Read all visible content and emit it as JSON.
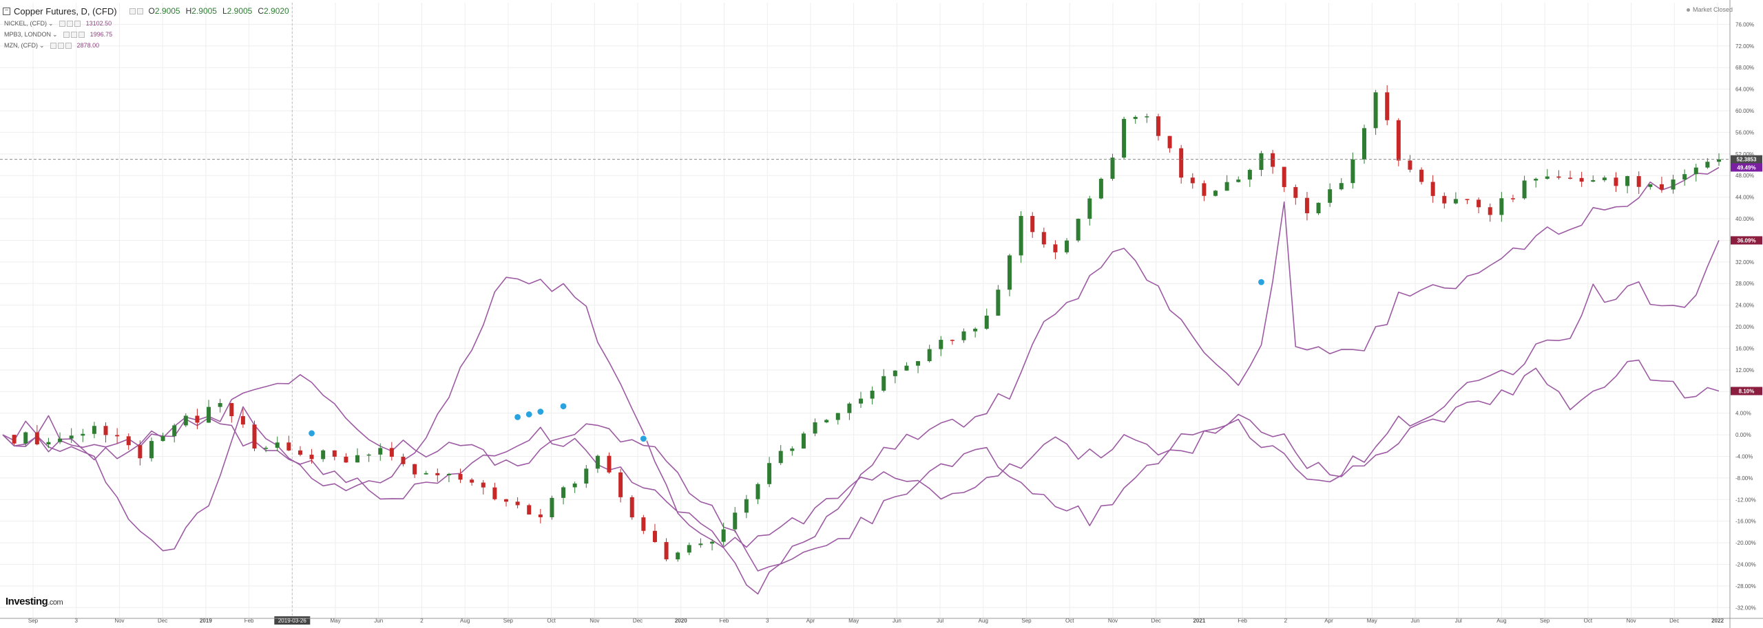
{
  "header": {
    "title": "Copper Futures, D, (CFD)",
    "ohlc": [
      {
        "label": "O",
        "value": "2.9005"
      },
      {
        "label": "H",
        "value": "2.9005"
      },
      {
        "label": "L",
        "value": "2.9005"
      },
      {
        "label": "C",
        "value": "2.9020"
      }
    ],
    "subseries": [
      {
        "name": "NICKEL, (CFD)",
        "value": "13102.50",
        "icon": "chevron-down-icon"
      },
      {
        "name": "MPB3, LONDON",
        "value": "1996.75",
        "icon": "chevron-down-icon"
      },
      {
        "name": "MZN, (CFD)",
        "value": "2878.00",
        "icon": "chevron-down-icon"
      }
    ],
    "market_status": "Market Closed"
  },
  "brand": {
    "name": "Investing",
    "suffix": ".com"
  },
  "colors": {
    "up": "#2e7d32",
    "down": "#c62828",
    "compare": "#9c5aa3",
    "grid": "#eeeeee",
    "axis_text": "#555555"
  },
  "chart_data": {
    "type": "line",
    "title": "Copper Futures, D, (CFD)",
    "xlabel": "",
    "ylabel": "",
    "ylim": [
      -34,
      80
    ],
    "y_unit": "%",
    "y_ticks": [
      "76.00%",
      "72.00%",
      "68.00%",
      "64.00%",
      "60.00%",
      "56.00%",
      "52.00%",
      "48.00%",
      "44.00%",
      "40.00%",
      "36.00%",
      "32.00%",
      "28.00%",
      "24.00%",
      "20.00%",
      "16.00%",
      "12.00%",
      "8.00%",
      "4.00%",
      "0.00%",
      "-4.00%",
      "-8.00%",
      "-12.00%",
      "-16.00%",
      "-20.00%",
      "-24.00%",
      "-28.00%",
      "-32.00%"
    ],
    "x_ticks": [
      "Sep",
      "3",
      "Nov",
      "Dec",
      "2019",
      "Feb",
      "2019-03-26",
      "May",
      "Jun",
      "2",
      "Aug",
      "Sep",
      "Oct",
      "Nov",
      "Dec",
      "2020",
      "Feb",
      "3",
      "Apr",
      "May",
      "Jun",
      "Jul",
      "Aug",
      "Sep",
      "Oct",
      "Nov",
      "Dec",
      "2021",
      "Feb",
      "2",
      "Apr",
      "May",
      "Jun",
      "Jul",
      "Aug",
      "Sep",
      "Oct",
      "Nov",
      "Dec",
      "2022"
    ],
    "x_bold": [
      "2019",
      "2020",
      "2021",
      "2022"
    ],
    "crosshair_label": "2019-03-26",
    "price_badge": "52.3853",
    "series": [
      {
        "name": "Copper Futures, D, (CFD)",
        "style": "candles",
        "anchors": [
          [
            0,
            0
          ],
          [
            5,
            -2
          ],
          [
            8,
            1
          ],
          [
            12,
            -4
          ],
          [
            15,
            1
          ],
          [
            19,
            6
          ],
          [
            22,
            -2
          ],
          [
            26,
            -3
          ],
          [
            30,
            -5
          ],
          [
            33,
            -2
          ],
          [
            36,
            -7
          ],
          [
            40,
            -9
          ],
          [
            44,
            -13
          ],
          [
            47,
            -15
          ],
          [
            52,
            -4
          ],
          [
            58,
            -24
          ],
          [
            62,
            -19
          ],
          [
            68,
            -4
          ],
          [
            74,
            6
          ],
          [
            78,
            12
          ],
          [
            83,
            18
          ],
          [
            86,
            22
          ],
          [
            89,
            40
          ],
          [
            92,
            34
          ],
          [
            96,
            47
          ],
          [
            98,
            58
          ],
          [
            100,
            60
          ],
          [
            103,
            48
          ],
          [
            106,
            44
          ],
          [
            110,
            52
          ],
          [
            114,
            41
          ],
          [
            117,
            46
          ],
          [
            119,
            56
          ],
          [
            120,
            64
          ],
          [
            122,
            50
          ],
          [
            126,
            44
          ],
          [
            130,
            42
          ],
          [
            134,
            48
          ],
          [
            138,
            46
          ],
          [
            142,
            47
          ],
          [
            146,
            46
          ],
          [
            148,
            50
          ],
          [
            150,
            51
          ]
        ],
        "end_label": "52.3853"
      },
      {
        "name": "NICKEL, (CFD)",
        "style": "line",
        "anchors": [
          [
            0,
            0
          ],
          [
            4,
            -2
          ],
          [
            8,
            -5
          ],
          [
            12,
            -18
          ],
          [
            15,
            -21
          ],
          [
            18,
            -12
          ],
          [
            21,
            5
          ],
          [
            25,
            -4
          ],
          [
            29,
            -10
          ],
          [
            33,
            -9
          ],
          [
            37,
            -2
          ],
          [
            40,
            12
          ],
          [
            44,
            30
          ],
          [
            47,
            28
          ],
          [
            50,
            27
          ],
          [
            54,
            10
          ],
          [
            57,
            -5
          ],
          [
            60,
            -18
          ],
          [
            63,
            -22
          ],
          [
            66,
            -29
          ],
          [
            70,
            -20
          ],
          [
            73,
            -15
          ],
          [
            76,
            -5
          ],
          [
            80,
            0
          ],
          [
            85,
            3
          ],
          [
            88,
            8
          ],
          [
            91,
            20
          ],
          [
            94,
            26
          ],
          [
            97,
            35
          ],
          [
            100,
            30
          ],
          [
            103,
            20
          ],
          [
            106,
            13
          ],
          [
            108,
            10
          ],
          [
            110,
            16
          ],
          [
            112,
            44
          ],
          [
            113,
            17
          ],
          [
            116,
            15
          ],
          [
            119,
            16
          ],
          [
            122,
            25
          ],
          [
            126,
            27
          ],
          [
            130,
            30
          ],
          [
            134,
            36
          ],
          [
            138,
            40
          ],
          [
            140,
            41
          ],
          [
            143,
            45
          ],
          [
            146,
            47
          ],
          [
            149,
            49
          ],
          [
            150,
            49.5
          ]
        ],
        "end_label": "49.49%"
      },
      {
        "name": "MPB3, LONDON",
        "style": "line",
        "anchors": [
          [
            0,
            0
          ],
          [
            4,
            2
          ],
          [
            8,
            -4
          ],
          [
            11,
            -3
          ],
          [
            15,
            2
          ],
          [
            19,
            3
          ],
          [
            22,
            9
          ],
          [
            25,
            11
          ],
          [
            28,
            7
          ],
          [
            32,
            0
          ],
          [
            36,
            -3
          ],
          [
            40,
            -1
          ],
          [
            44,
            -6
          ],
          [
            47,
            -3
          ],
          [
            51,
            3
          ],
          [
            54,
            -1
          ],
          [
            57,
            -3
          ],
          [
            60,
            -10
          ],
          [
            63,
            -16
          ],
          [
            66,
            -24
          ],
          [
            70,
            -22
          ],
          [
            74,
            -18
          ],
          [
            78,
            -12
          ],
          [
            82,
            -5
          ],
          [
            86,
            -3
          ],
          [
            89,
            -8
          ],
          [
            92,
            -12
          ],
          [
            95,
            -16
          ],
          [
            98,
            -10
          ],
          [
            101,
            -5
          ],
          [
            104,
            -2
          ],
          [
            107,
            3
          ],
          [
            110,
            -2
          ],
          [
            113,
            -6
          ],
          [
            116,
            -8
          ],
          [
            119,
            -4
          ],
          [
            122,
            2
          ],
          [
            125,
            4
          ],
          [
            128,
            9
          ],
          [
            131,
            11
          ],
          [
            134,
            16
          ],
          [
            137,
            19
          ],
          [
            139,
            27
          ],
          [
            141,
            24
          ],
          [
            143,
            28
          ],
          [
            145,
            23
          ],
          [
            148,
            25
          ],
          [
            150,
            36
          ]
        ],
        "end_label": "36.09%"
      },
      {
        "name": "MZN, (CFD)",
        "style": "line",
        "anchors": [
          [
            0,
            0
          ],
          [
            4,
            -2
          ],
          [
            8,
            -3
          ],
          [
            12,
            -1
          ],
          [
            15,
            1
          ],
          [
            18,
            3
          ],
          [
            22,
            -2
          ],
          [
            26,
            -5
          ],
          [
            30,
            -8
          ],
          [
            33,
            -12
          ],
          [
            37,
            -9
          ],
          [
            40,
            -6
          ],
          [
            43,
            -3
          ],
          [
            47,
            0
          ],
          [
            50,
            -2
          ],
          [
            53,
            -6
          ],
          [
            56,
            -9
          ],
          [
            59,
            -13
          ],
          [
            62,
            -19
          ],
          [
            65,
            -20
          ],
          [
            68,
            -18
          ],
          [
            71,
            -14
          ],
          [
            74,
            -10
          ],
          [
            77,
            -8
          ],
          [
            80,
            -9
          ],
          [
            83,
            -12
          ],
          [
            86,
            -8
          ],
          [
            89,
            -5
          ],
          [
            92,
            -2
          ],
          [
            95,
            -4
          ],
          [
            98,
            -1
          ],
          [
            101,
            -3
          ],
          [
            104,
            0
          ],
          [
            107,
            3
          ],
          [
            110,
            2
          ],
          [
            113,
            -3
          ],
          [
            116,
            -8
          ],
          [
            119,
            -5
          ],
          [
            122,
            -1
          ],
          [
            125,
            2
          ],
          [
            128,
            5
          ],
          [
            131,
            7
          ],
          [
            134,
            11
          ],
          [
            137,
            6
          ],
          [
            140,
            9
          ],
          [
            142,
            14
          ],
          [
            145,
            9
          ],
          [
            148,
            8
          ],
          [
            150,
            8.1
          ]
        ],
        "end_label": "8.10%"
      }
    ],
    "grid": true,
    "legend": "top-left"
  }
}
